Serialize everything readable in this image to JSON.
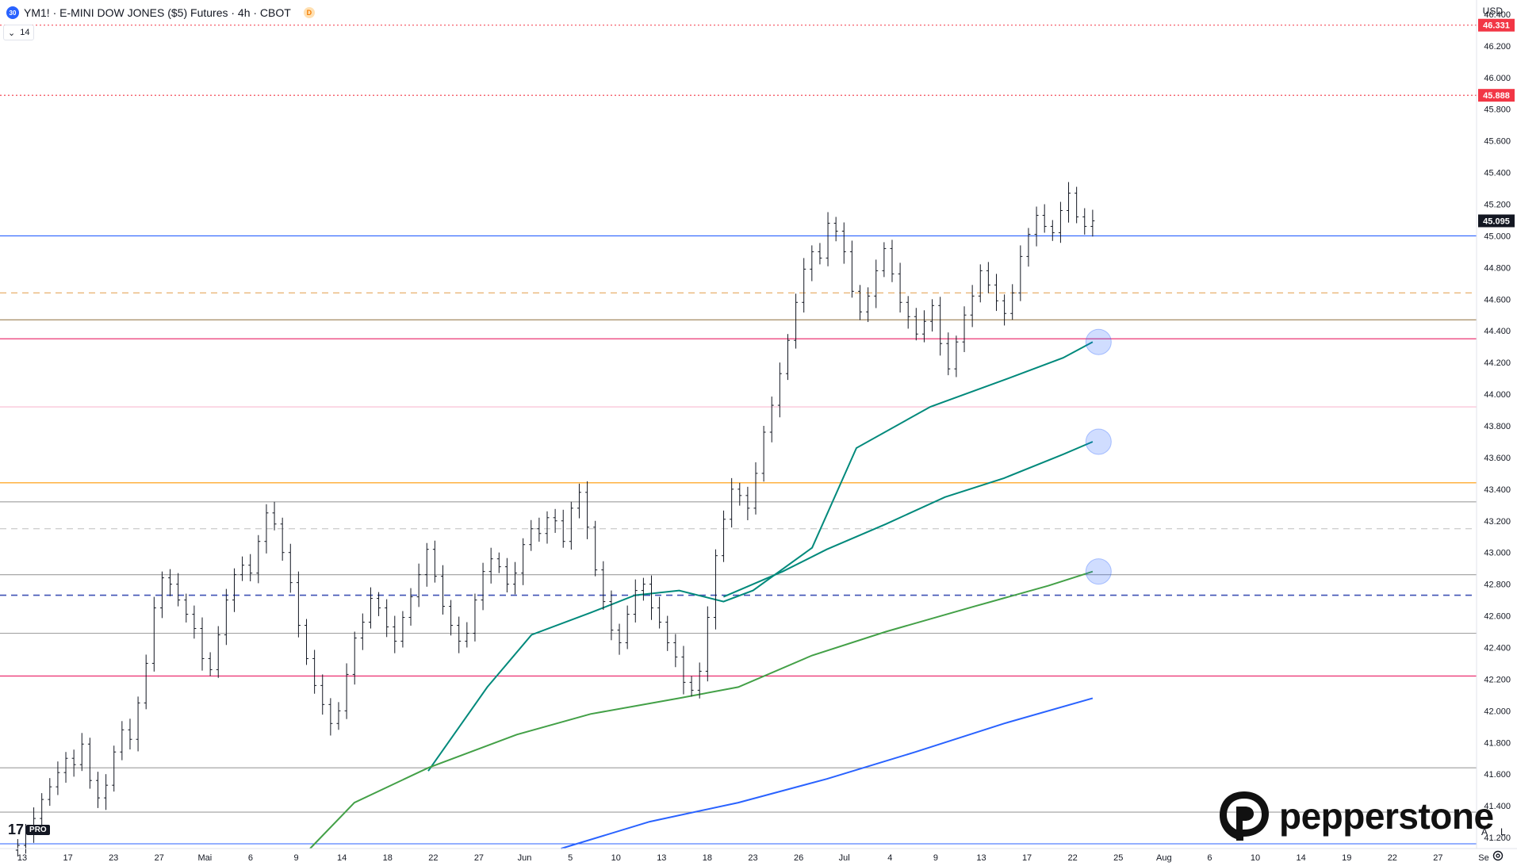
{
  "header": {
    "symbol_badge": "30",
    "title": "YM1! · E-MINI DOW JONES ($5) Futures · 4h · CBOT",
    "d_badge": "D",
    "indicator_toggle": "⌄",
    "indicator_value": "14"
  },
  "currency": "USD",
  "controls": {
    "auto": "A",
    "log": "L",
    "settings_icon": "gear-icon"
  },
  "brand": {
    "name": "pepperstone",
    "tv_mark": "17",
    "tv_pro": "PRO"
  },
  "chart_data": {
    "type": "candlestick",
    "y_axis": {
      "ticks": [
        41200,
        41400,
        41600,
        41800,
        42000,
        42200,
        42400,
        42600,
        42800,
        43000,
        43200,
        43400,
        43600,
        43800,
        44000,
        44200,
        44400,
        44600,
        44800,
        45000,
        45200,
        45400,
        45600,
        45800,
        46000,
        46200,
        46400
      ],
      "tick_labels": [
        "41.200",
        "41.400",
        "41.600",
        "41.800",
        "42.000",
        "42.200",
        "42.400",
        "42.600",
        "42.800",
        "43.000",
        "43.200",
        "43.400",
        "43.600",
        "43.800",
        "44.000",
        "44.200",
        "44.400",
        "44.600",
        "44.800",
        "45.000",
        "45.200",
        "45.400",
        "45.600",
        "45.800",
        "46.000",
        "46.200",
        "46.400"
      ],
      "range": [
        41130,
        46490
      ]
    },
    "x_axis": {
      "labels": [
        "13",
        "17",
        "23",
        "27",
        "Mai",
        "6",
        "9",
        "14",
        "18",
        "22",
        "27",
        "Jun",
        "5",
        "10",
        "13",
        "18",
        "23",
        "26",
        "Jul",
        "4",
        "9",
        "13",
        "17",
        "22",
        "25",
        "Aug",
        "6",
        "10",
        "14",
        "19",
        "22",
        "27",
        "Se"
      ]
    },
    "price_tags": [
      {
        "label": "46.331",
        "value": 46331,
        "color": "#f23645"
      },
      {
        "label": "45.888",
        "value": 45888,
        "color": "#f23645"
      },
      {
        "label": "45.095",
        "value": 45095,
        "color": "#131722"
      }
    ],
    "levels": [
      {
        "value": 46331,
        "style": "dotted",
        "color": "#f23645"
      },
      {
        "value": 45888,
        "style": "dotted",
        "color": "#f23645"
      },
      {
        "value": 45000,
        "style": "solid",
        "color": "#2962ff"
      },
      {
        "value": 44640,
        "style": "dashed",
        "color": "#e6a85c"
      },
      {
        "value": 44470,
        "style": "solid",
        "color": "#8d6e3c"
      },
      {
        "value": 44350,
        "style": "solid",
        "color": "#e91e63"
      },
      {
        "value": 43920,
        "style": "solid",
        "color": "#f8bbd0"
      },
      {
        "value": 43440,
        "style": "solid",
        "color": "#ff9800"
      },
      {
        "value": 43320,
        "style": "solid",
        "color": "#9e9e9e"
      },
      {
        "value": 43150,
        "style": "dashed",
        "color": "#bdbdbd"
      },
      {
        "value": 42860,
        "style": "solid",
        "color": "#9e9e9e"
      },
      {
        "value": 42730,
        "style": "dashed",
        "color": "#3f51b5"
      },
      {
        "value": 42490,
        "style": "solid",
        "color": "#9e9e9e"
      },
      {
        "value": 42220,
        "style": "solid",
        "color": "#e91e63"
      },
      {
        "value": 41640,
        "style": "solid",
        "color": "#9e9e9e"
      },
      {
        "value": 41360,
        "style": "solid",
        "color": "#9e9e9e"
      },
      {
        "value": 41160,
        "style": "solid",
        "color": "#2962ff"
      }
    ],
    "close_series": [
      41150,
      41230,
      41320,
      41440,
      41520,
      41610,
      41700,
      41660,
      41790,
      41560,
      41450,
      41530,
      41740,
      41880,
      41820,
      42050,
      42300,
      42650,
      42840,
      42800,
      42700,
      42610,
      42520,
      42330,
      42260,
      42480,
      42700,
      42860,
      42920,
      42870,
      43070,
      43250,
      43180,
      43000,
      42810,
      42540,
      42330,
      42160,
      42040,
      41920,
      42000,
      42230,
      42460,
      42560,
      42710,
      42650,
      42530,
      42440,
      42590,
      42720,
      42860,
      43020,
      42850,
      42660,
      42540,
      42440,
      42490,
      42700,
      42880,
      42960,
      42910,
      42800,
      42870,
      43050,
      43150,
      43120,
      43220,
      43200,
      43070,
      43280,
      43380,
      43160,
      42890,
      42690,
      42510,
      42430,
      42610,
      42760,
      42800,
      42650,
      42560,
      42430,
      42340,
      42180,
      42130,
      42250,
      42590,
      42980,
      43210,
      43400,
      43360,
      43280,
      43500,
      43760,
      43930,
      44130,
      44340,
      44580,
      44790,
      44900,
      44860,
      45080,
      45030,
      44900,
      44650,
      44520,
      44620,
      44780,
      44920,
      44760,
      44580,
      44490,
      44380,
      44460,
      44560,
      44320,
      44160,
      44330,
      44500,
      44620,
      44780,
      44690,
      44590,
      44510,
      44640,
      44870,
      45010,
      45130,
      45060,
      45020,
      45160,
      45270,
      45120,
      45060,
      45095
    ],
    "moving_averages": [
      {
        "color": "#00897b",
        "points": [
          [
            0.29,
            41620
          ],
          [
            0.33,
            42150
          ],
          [
            0.36,
            42480
          ],
          [
            0.4,
            42620
          ],
          [
            0.43,
            42730
          ],
          [
            0.46,
            42760
          ],
          [
            0.49,
            42690
          ],
          [
            0.51,
            42760
          ],
          [
            0.55,
            43030
          ],
          [
            0.58,
            43660
          ],
          [
            0.63,
            43920
          ],
          [
            0.68,
            44090
          ],
          [
            0.72,
            44230
          ],
          [
            0.74,
            44330
          ]
        ]
      },
      {
        "color": "#00897b",
        "points": [
          [
            0.49,
            42720
          ],
          [
            0.53,
            42880
          ],
          [
            0.56,
            43020
          ],
          [
            0.6,
            43180
          ],
          [
            0.64,
            43350
          ],
          [
            0.68,
            43470
          ],
          [
            0.72,
            43620
          ],
          [
            0.74,
            43700
          ]
        ]
      },
      {
        "color": "#43a047",
        "points": [
          [
            0.21,
            41130
          ],
          [
            0.24,
            41420
          ],
          [
            0.29,
            41640
          ],
          [
            0.35,
            41850
          ],
          [
            0.4,
            41980
          ],
          [
            0.46,
            42080
          ],
          [
            0.5,
            42150
          ],
          [
            0.55,
            42350
          ],
          [
            0.6,
            42500
          ],
          [
            0.66,
            42660
          ],
          [
            0.71,
            42790
          ],
          [
            0.74,
            42880
          ]
        ]
      },
      {
        "color": "#2962ff",
        "points": [
          [
            0.38,
            41130
          ],
          [
            0.44,
            41300
          ],
          [
            0.5,
            41420
          ],
          [
            0.56,
            41570
          ],
          [
            0.62,
            41740
          ],
          [
            0.68,
            41920
          ],
          [
            0.74,
            42080
          ]
        ]
      }
    ],
    "markers": [
      44330,
      43700,
      42880
    ]
  }
}
